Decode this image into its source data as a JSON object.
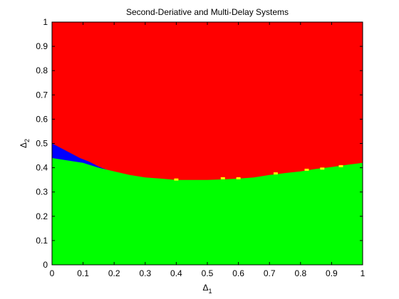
{
  "chart_data": {
    "type": "scatter",
    "title": "Second-Deriative and Multi-Delay Systems",
    "xlabel": "Δ",
    "xlabel_sub": "1",
    "ylabel": "Δ",
    "ylabel_sub": "2",
    "xlim": [
      0,
      1
    ],
    "ylim": [
      0,
      1
    ],
    "xticks": [
      "0",
      "0.1",
      "0.2",
      "0.3",
      "0.4",
      "0.5",
      "0.6",
      "0.7",
      "0.8",
      "0.9",
      "1"
    ],
    "yticks": [
      "0",
      "0.1",
      "0.2",
      "0.3",
      "0.4",
      "0.5",
      "0.6",
      "0.7",
      "0.8",
      "0.9",
      "1"
    ],
    "grid": false,
    "colors": {
      "stable_region": "#00ff00",
      "unstable_region": "#ff0000",
      "blue_region": "#0000ff",
      "yellow_points": "#ffff00"
    },
    "regions": [
      {
        "color": "#00ff00",
        "x": [
          0,
          0.05,
          0.1,
          0.15,
          0.2,
          0.25,
          0.3,
          0.35,
          0.4,
          0.45,
          0.5,
          0.55,
          0.6,
          0.65,
          0.7,
          0.75,
          0.8,
          0.85,
          0.9,
          0.95,
          1
        ],
        "y_top": [
          0.44,
          0.43,
          0.42,
          0.4,
          0.385,
          0.37,
          0.36,
          0.355,
          0.35,
          0.35,
          0.35,
          0.352,
          0.355,
          0.36,
          0.37,
          0.378,
          0.385,
          0.395,
          0.403,
          0.412,
          0.42
        ]
      },
      {
        "color": "#0000ff",
        "x": [
          0,
          0.03,
          0.06,
          0.09,
          0.12,
          0.15,
          0.18,
          0.21
        ],
        "y_top": [
          0.5,
          0.48,
          0.46,
          0.44,
          0.425,
          0.405,
          0.39,
          0.38
        ]
      },
      {
        "color": "#ff0000",
        "x": [
          0,
          1
        ],
        "y_top": [
          1,
          1
        ]
      }
    ],
    "yellow_points": {
      "x": [
        0.4,
        0.55,
        0.6,
        0.72,
        0.82,
        0.87,
        0.93
      ],
      "y": [
        0.35,
        0.355,
        0.355,
        0.375,
        0.39,
        0.395,
        0.405
      ]
    }
  }
}
